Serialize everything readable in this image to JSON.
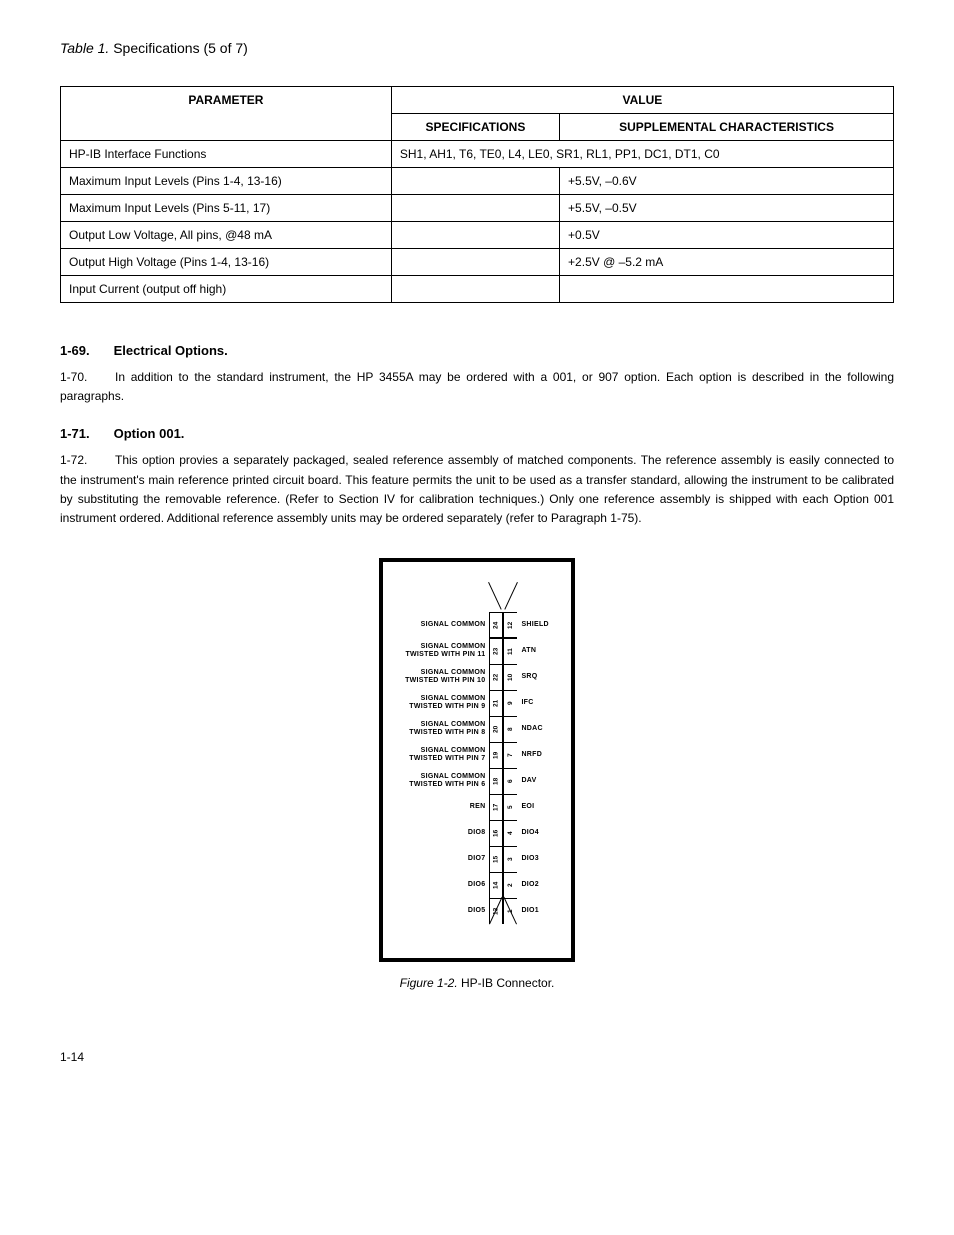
{
  "page": {
    "title_prefix": "Table 1.",
    "title_text": "Specifications (5 of 7)",
    "footer": "1-14"
  },
  "table": {
    "header_left": "PARAMETER",
    "header_group": "VALUE",
    "subheaders": [
      "SPECIFICATIONS",
      "SUPPLEMENTAL CHARACTERISTICS"
    ],
    "rows": [
      {
        "param": "HP-IB Interface Functions",
        "spec_colspan": true,
        "spec": "SH1, AH1, T6, TE0, L4, LE0, SR1, RL1, PP1, DC1, DT1, C0"
      },
      {
        "param": "Maximum Input Levels (Pins 1-4, 13-16)",
        "spec": "",
        "char": "+5.5V, –0.6V"
      },
      {
        "param": "Maximum Input Levels (Pins 5-11, 17)",
        "spec": "",
        "char": "+5.5V, –0.5V"
      },
      {
        "param": "Output Low Voltage, All pins, @48 mA",
        "spec": "",
        "char": "+0.5V"
      },
      {
        "param": "Output High Voltage (Pins 1-4, 13-16)",
        "spec": "",
        "char": "+2.5V @ –5.2 mA"
      },
      {
        "param": "Input Current (output off high)",
        "spec": "",
        "char": ""
      }
    ]
  },
  "sections": [
    {
      "num": "1-69.",
      "heading": "Electrical Options.",
      "paragraphs": [
        {
          "num": "1-70.",
          "text": "In addition to the standard instrument, the HP 3455A may be ordered with a 001, or 907 option. Each option is described in the following paragraphs."
        }
      ]
    },
    {
      "num": "1-71.",
      "heading": "Option 001.",
      "paragraphs": [
        {
          "num": "1-72.",
          "text": "This option provies a separately packaged, sealed reference assembly of matched components. The reference assembly is easily connected to the instrument's main reference printed circuit board. This feature permits the unit to be used as a transfer standard, allowing the instrument to be calibrated by substituting the removable reference. (Refer to Section IV for calibration techniques.) Only one reference assembly is shipped with each Option 001 instrument ordered. Additional reference assembly units may be ordered separately (refer to Paragraph 1-75)."
        }
      ]
    }
  ],
  "figure": {
    "caption_prefix": "Figure 1-2.",
    "caption_text": "HP-IB Connector.",
    "left_labels": [
      {
        "l1": "SIGNAL COMMON",
        "l2": ""
      },
      {
        "l1": "SIGNAL COMMON",
        "l2": "TWISTED WITH PIN 11"
      },
      {
        "l1": "SIGNAL COMMON",
        "l2": "TWISTED WITH PIN 10"
      },
      {
        "l1": "SIGNAL COMMON",
        "l2": "TWISTED WITH PIN  9"
      },
      {
        "l1": "SIGNAL COMMON",
        "l2": "TWISTED WITH PIN  8"
      },
      {
        "l1": "SIGNAL COMMON",
        "l2": "TWISTED WITH PIN  7"
      },
      {
        "l1": "SIGNAL COMMON",
        "l2": "TWISTED WITH PIN  6"
      },
      {
        "l1": "REN",
        "l2": ""
      },
      {
        "l1": "DIO8",
        "l2": ""
      },
      {
        "l1": "DIO7",
        "l2": ""
      },
      {
        "l1": "DIO6",
        "l2": ""
      },
      {
        "l1": "DIO5",
        "l2": ""
      }
    ],
    "right_labels": [
      "SHIELD",
      "ATN",
      "SRQ",
      "IFC",
      "NDAC",
      "NRFD",
      "DAV",
      "EOI",
      "DIO4",
      "DIO3",
      "DIO2",
      "DIO1"
    ],
    "left_pins": [
      "24",
      "23",
      "22",
      "21",
      "20",
      "19",
      "18",
      "17",
      "16",
      "15",
      "14",
      "13"
    ],
    "right_pins": [
      "12",
      "11",
      "10",
      "9",
      "8",
      "7",
      "6",
      "5",
      "4",
      "3",
      "2",
      "1"
    ]
  }
}
